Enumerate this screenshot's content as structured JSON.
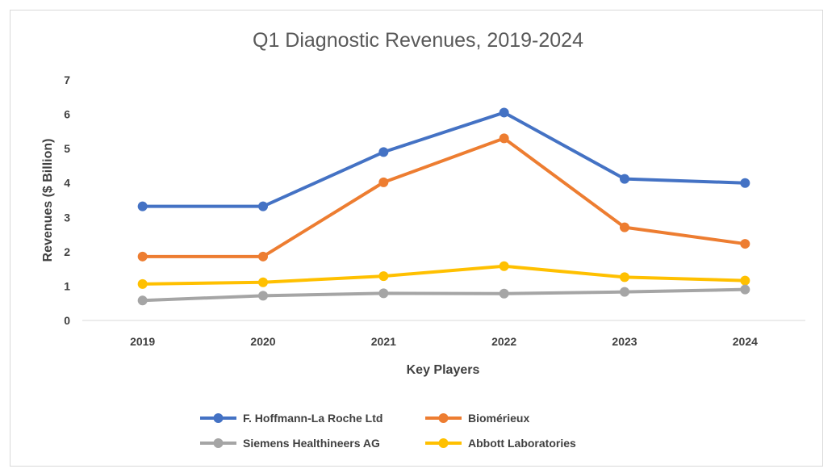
{
  "chart_data": {
    "type": "line",
    "title": "Q1 Diagnostic Revenues, 2019-2024",
    "xlabel": "Key Players",
    "ylabel": "Revenues ($ Billion)",
    "x": [
      "2019",
      "2020",
      "2021",
      "2022",
      "2023",
      "2024"
    ],
    "ylim": [
      0,
      7
    ],
    "yticks": [
      "0",
      "1",
      "2",
      "3",
      "4",
      "5",
      "6",
      "7"
    ],
    "grid": false,
    "legend_position": "bottom",
    "series": [
      {
        "name": "F. Hoffmann-La Roche Ltd",
        "color": "#4472c4",
        "values": [
          3.32,
          3.32,
          4.9,
          6.05,
          4.12,
          4.0
        ]
      },
      {
        "name": "Biomérieux",
        "color": "#ed7d31",
        "values": [
          1.86,
          1.86,
          4.02,
          5.3,
          2.71,
          2.23
        ]
      },
      {
        "name": "Siemens Healthineers AG",
        "color": "#a5a5a5",
        "values": [
          0.58,
          0.72,
          0.79,
          0.78,
          0.83,
          0.9
        ]
      },
      {
        "name": "Abbott Laboratories",
        "color": "#ffc000",
        "values": [
          1.06,
          1.11,
          1.29,
          1.58,
          1.26,
          1.16
        ]
      }
    ]
  }
}
